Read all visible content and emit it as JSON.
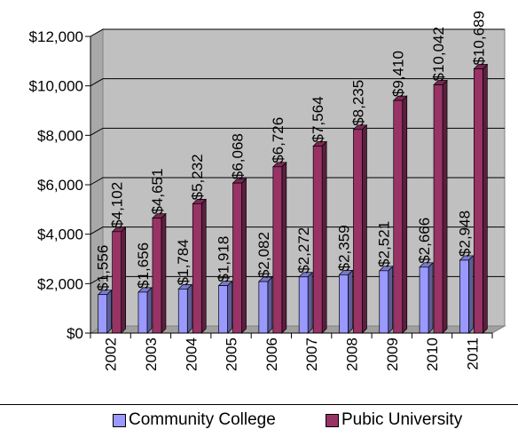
{
  "chart_data": {
    "type": "bar",
    "categories": [
      "2002",
      "2003",
      "2004",
      "2005",
      "2006",
      "2007",
      "2008",
      "2009",
      "2010",
      "2011"
    ],
    "series": [
      {
        "name": "Community College",
        "values": [
          1556,
          1656,
          1784,
          1918,
          2082,
          2272,
          2359,
          2521,
          2666,
          2948
        ],
        "labels": [
          "$1,556",
          "$1,656",
          "$1,784",
          "$1,918",
          "$2,082",
          "$2,272",
          "$2,359",
          "$2,521",
          "$2,666",
          "$2,948"
        ],
        "color": "#9999ff"
      },
      {
        "name": "Pubic University",
        "values": [
          4102,
          4651,
          5232,
          6068,
          6726,
          7564,
          8235,
          9410,
          10042,
          10689
        ],
        "labels": [
          "$4,102",
          "$4,651",
          "$5,232",
          "$6,068",
          "$6,726",
          "$7,564",
          "$8,235",
          "$9,410",
          "$10,042",
          "$10,689"
        ],
        "color": "#993366"
      }
    ],
    "yticks": [
      "$0",
      "$2,000",
      "$4,000",
      "$6,000",
      "$8,000",
      "$10,000",
      "$12,000"
    ],
    "ylim": [
      0,
      12000
    ],
    "grid": true,
    "legend_position": "bottom",
    "plot_background": "#c0c0c0"
  }
}
